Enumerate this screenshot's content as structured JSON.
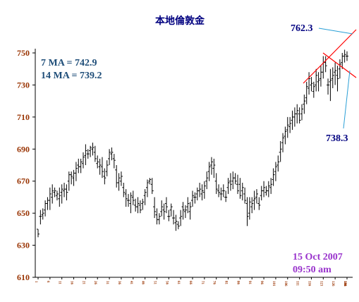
{
  "chart_data": {
    "type": "ohlc",
    "title": "本地倫敦金",
    "ylim": [
      610,
      750
    ],
    "yticks": [
      "610",
      "630",
      "650",
      "670",
      "690",
      "710",
      "730",
      "750"
    ],
    "xticks": [
      "1",
      "6",
      "11",
      "16",
      "21",
      "26",
      "31",
      "36",
      "41",
      "46",
      "51",
      "56",
      "61",
      "66",
      "71",
      "76",
      "81",
      "86",
      "91",
      "96",
      "101",
      "106",
      "111",
      "116",
      "121",
      "126",
      "131",
      "136",
      "141",
      "146",
      "151"
    ],
    "grid": false,
    "ma_labels": [
      "7 MA = 742.9",
      "14 MA = 739.2"
    ],
    "annotations": {
      "upper": "762.3",
      "lower": "738.3"
    },
    "timestamp": {
      "date": "15 Oct 2007",
      "time": "09:50 am"
    },
    "colors": {
      "bars": "#000000",
      "trendlines": "#ff0000",
      "pointers": "#2a9fd6",
      "title": "#000080",
      "ticks": "#993300",
      "stamp": "#9933cc"
    },
    "ohlc": [
      [
        640,
        640,
        635,
        637
      ],
      [
        648,
        652,
        643,
        648
      ],
      [
        649,
        653,
        646,
        650
      ],
      [
        652,
        658,
        648,
        656
      ],
      [
        656,
        660,
        652,
        658
      ],
      [
        658,
        666,
        652,
        662
      ],
      [
        660,
        668,
        656,
        664
      ],
      [
        663,
        666,
        660,
        664
      ],
      [
        661,
        664,
        658,
        662
      ],
      [
        659,
        666,
        654,
        661
      ],
      [
        663,
        668,
        656,
        665
      ],
      [
        664,
        669,
        660,
        665
      ],
      [
        665,
        668,
        658,
        663
      ],
      [
        670,
        676,
        664,
        674
      ],
      [
        674,
        676,
        668,
        673
      ],
      [
        672,
        677,
        667,
        675
      ],
      [
        675,
        682,
        670,
        678
      ],
      [
        680,
        684,
        675,
        679
      ],
      [
        679,
        684,
        675,
        682
      ],
      [
        681,
        688,
        678,
        685
      ],
      [
        686,
        693,
        680,
        689
      ],
      [
        687,
        690,
        684,
        687
      ],
      [
        689,
        692,
        685,
        691
      ],
      [
        690,
        694,
        686,
        691
      ],
      [
        688,
        692,
        682,
        684
      ],
      [
        681,
        686,
        678,
        682
      ],
      [
        679,
        684,
        674,
        680
      ],
      [
        679,
        685,
        672,
        676
      ],
      [
        673,
        678,
        668,
        672
      ],
      [
        676,
        683,
        673,
        680
      ],
      [
        684,
        690,
        680,
        688
      ],
      [
        687,
        691,
        683,
        688
      ],
      [
        684,
        687,
        678,
        683
      ],
      [
        677,
        680,
        666,
        669
      ],
      [
        669,
        675,
        664,
        672
      ],
      [
        670,
        676,
        667,
        673
      ],
      [
        666,
        669,
        660,
        663
      ],
      [
        662,
        665,
        654,
        659
      ],
      [
        658,
        662,
        654,
        658
      ],
      [
        656,
        663,
        650,
        661
      ],
      [
        660,
        664,
        655,
        658
      ],
      [
        655,
        659,
        651,
        654
      ],
      [
        654,
        660,
        650,
        656
      ],
      [
        655,
        658,
        650,
        652
      ],
      [
        656,
        659,
        652,
        657
      ],
      [
        661,
        665,
        655,
        663
      ],
      [
        666,
        671,
        660,
        669
      ],
      [
        670,
        672,
        668,
        671
      ],
      [
        668,
        672,
        662,
        664
      ],
      [
        654,
        660,
        647,
        651
      ],
      [
        649,
        653,
        643,
        646
      ],
      [
        646,
        650,
        643,
        648
      ],
      [
        651,
        658,
        648,
        654
      ],
      [
        652,
        656,
        646,
        651
      ],
      [
        656,
        660,
        650,
        654
      ],
      [
        648,
        652,
        645,
        648
      ],
      [
        652,
        656,
        648,
        654
      ],
      [
        647,
        652,
        643,
        647
      ],
      [
        644,
        649,
        639,
        645
      ],
      [
        643,
        645,
        640,
        642
      ],
      [
        647,
        652,
        642,
        648
      ],
      [
        654,
        657,
        646,
        652
      ],
      [
        651,
        655,
        647,
        652
      ],
      [
        654,
        660,
        650,
        656
      ],
      [
        651,
        657,
        646,
        654
      ],
      [
        658,
        664,
        654,
        661
      ],
      [
        660,
        663,
        656,
        660
      ],
      [
        662,
        666,
        658,
        664
      ],
      [
        664,
        669,
        660,
        665
      ],
      [
        662,
        668,
        658,
        664
      ],
      [
        663,
        670,
        659,
        667
      ],
      [
        670,
        676,
        665,
        672
      ],
      [
        676,
        682,
        670,
        679
      ],
      [
        680,
        685,
        674,
        682
      ],
      [
        678,
        684,
        672,
        680
      ],
      [
        670,
        675,
        662,
        665
      ],
      [
        664,
        668,
        660,
        663
      ],
      [
        662,
        666,
        658,
        662
      ],
      [
        664,
        668,
        660,
        664
      ],
      [
        660,
        664,
        657,
        660
      ],
      [
        666,
        672,
        662,
        669
      ],
      [
        670,
        675,
        664,
        668
      ],
      [
        670,
        676,
        665,
        672
      ],
      [
        672,
        675,
        668,
        670
      ],
      [
        668,
        674,
        662,
        664
      ],
      [
        668,
        672,
        659,
        661
      ],
      [
        664,
        669,
        658,
        666
      ],
      [
        662,
        666,
        656,
        658
      ],
      [
        656,
        660,
        642,
        648
      ],
      [
        650,
        660,
        646,
        657
      ],
      [
        654,
        660,
        650,
        656
      ],
      [
        658,
        664,
        652,
        659
      ],
      [
        660,
        665,
        656,
        662
      ],
      [
        656,
        660,
        652,
        655
      ],
      [
        661,
        667,
        658,
        664
      ],
      [
        664,
        670,
        660,
        666
      ],
      [
        663,
        667,
        661,
        664
      ],
      [
        664,
        670,
        660,
        667
      ],
      [
        666,
        672,
        662,
        668
      ],
      [
        671,
        678,
        667,
        674
      ],
      [
        676,
        682,
        670,
        679
      ],
      [
        680,
        686,
        676,
        682
      ],
      [
        688,
        695,
        682,
        690
      ],
      [
        694,
        700,
        688,
        697
      ],
      [
        698,
        704,
        693,
        701
      ],
      [
        702,
        710,
        697,
        705
      ],
      [
        704,
        710,
        700,
        706
      ],
      [
        708,
        714,
        702,
        710
      ],
      [
        710,
        716,
        704,
        712
      ],
      [
        712,
        718,
        706,
        714
      ],
      [
        712,
        716,
        706,
        708
      ],
      [
        712,
        718,
        708,
        715
      ],
      [
        718,
        724,
        712,
        720
      ],
      [
        722,
        732,
        718,
        729
      ],
      [
        728,
        738,
        724,
        734
      ],
      [
        730,
        735,
        726,
        731
      ],
      [
        726,
        732,
        722,
        729
      ],
      [
        730,
        740,
        726,
        736
      ],
      [
        732,
        738,
        726,
        733
      ],
      [
        734,
        742,
        729,
        738
      ],
      [
        738,
        748,
        734,
        744
      ],
      [
        744,
        748,
        738,
        742
      ],
      [
        730,
        734,
        724,
        730
      ],
      [
        732,
        740,
        720,
        733
      ],
      [
        734,
        741,
        728,
        736
      ],
      [
        738,
        744,
        730,
        739
      ],
      [
        736,
        742,
        726,
        734
      ],
      [
        740,
        746,
        734,
        743
      ],
      [
        744,
        750,
        740,
        748
      ],
      [
        748,
        752,
        744,
        749
      ],
      [
        748,
        751,
        745,
        748
      ]
    ]
  }
}
